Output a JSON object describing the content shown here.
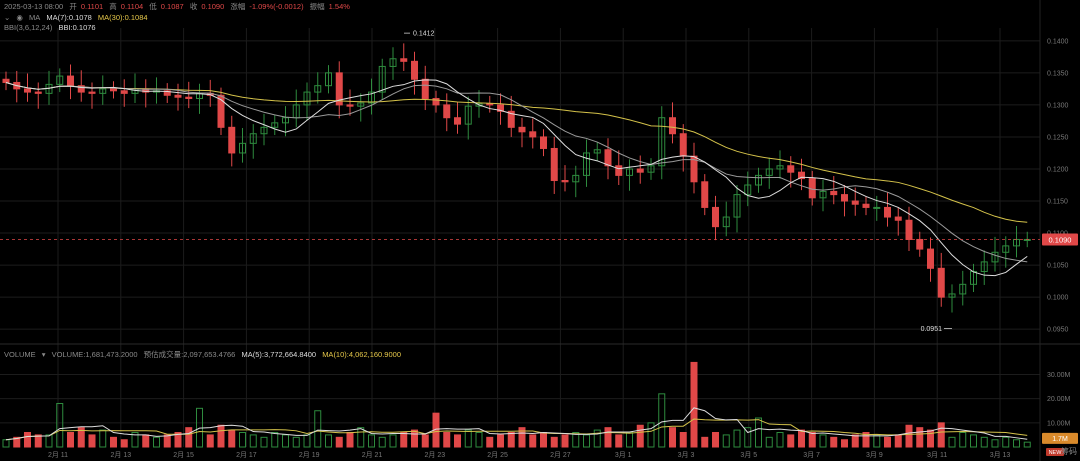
{
  "header": {
    "datetime": "2025-03-13 08:00",
    "open_label": "开",
    "open": "0.1101",
    "high_label": "高",
    "high": "0.1104",
    "low_label": "低",
    "low": "0.1087",
    "close_label": "收",
    "close": "0.1090",
    "change_label": "涨幅",
    "change": "-1.09%(-0.0012)",
    "amp_label": "振幅",
    "amp": "1.54%",
    "ma_label": "MA",
    "ma7": "MA(7):0.1078",
    "ma30": "MA(30):0.1084",
    "bbi_label": "BBI(3,6,12,24)",
    "bbi": "BBI:0.1076"
  },
  "volume_header": {
    "label": "VOLUME",
    "volume": "VOLUME:1,681,473.2000",
    "est": "预估成交量:2,097,653.4766",
    "ma5": "MA(5):3,772,664.8400",
    "ma10": "MA(10):4,062,160.9000"
  },
  "colors": {
    "up": "#2e8b3e",
    "down": "#e04848",
    "white": "#dddddd",
    "yellow": "#d4c24a",
    "grid": "#1c1c1c",
    "axis": "#777777"
  },
  "icons": [
    "eye-icon",
    "dropdown-icon",
    "settings-icon",
    "fullscreen-icon"
  ],
  "side_labels": {
    "bottom_right": "筹",
    "bottom_right2": "码",
    "new_badge": "NEW"
  },
  "chart_data": [
    {
      "type": "candlestick",
      "ylim": [
        0.093,
        0.142
      ],
      "y_ticks": [
        "0.1400",
        "0.1350",
        "0.1300",
        "0.1250",
        "0.1200",
        "0.1150",
        "0.1100",
        "0.1050",
        "0.1000",
        "0.0950"
      ],
      "x_ticks": [
        "2月 11",
        "2月 13",
        "2月 15",
        "2月 17",
        "2月 19",
        "2月 21",
        "2月 23",
        "2月 25",
        "2月 27",
        "3月 1",
        "3月 3",
        "3月 5",
        "3月 7",
        "3月 9",
        "3月 11",
        "3月 13"
      ],
      "last_price": "0.1090",
      "annotations": {
        "high": "0.1412",
        "low": "0.0951"
      },
      "series": [
        {
          "name": "MA(7)",
          "color": "#dddddd"
        },
        {
          "name": "MA(30)",
          "color": "#d4c24a"
        },
        {
          "name": "BBI",
          "color": "#bbbbbb"
        }
      ],
      "close_path": [
        0.1335,
        0.1325,
        0.132,
        0.1318,
        0.1332,
        0.1345,
        0.133,
        0.132,
        0.1318,
        0.1325,
        0.1322,
        0.1318,
        0.1325,
        0.132,
        0.1322,
        0.1315,
        0.1312,
        0.131,
        0.1318,
        0.1315,
        0.1265,
        0.1225,
        0.124,
        0.1255,
        0.1265,
        0.1272,
        0.128,
        0.13,
        0.132,
        0.133,
        0.135,
        0.13,
        0.1298,
        0.1303,
        0.132,
        0.136,
        0.1372,
        0.1368,
        0.134,
        0.131,
        0.13,
        0.128,
        0.127,
        0.1298,
        0.1302,
        0.13,
        0.129,
        0.1265,
        0.1258,
        0.125,
        0.1232,
        0.1182,
        0.118,
        0.119,
        0.1225,
        0.123,
        0.1205,
        0.119,
        0.12,
        0.1195,
        0.1205,
        0.128,
        0.1255,
        0.122,
        0.118,
        0.114,
        0.111,
        0.1125,
        0.116,
        0.1175,
        0.119,
        0.12,
        0.1205,
        0.1195,
        0.1185,
        0.1155,
        0.1165,
        0.116,
        0.115,
        0.1145,
        0.114,
        0.114,
        0.1125,
        0.112,
        0.109,
        0.1075,
        0.1045,
        0.1,
        0.1005,
        0.102,
        0.104,
        0.1055,
        0.107,
        0.108,
        0.109,
        0.109
      ],
      "volume": {
        "ylim": [
          0,
          36000000
        ],
        "y_ticks": [
          "30.00M",
          "20.00M",
          "10.00M"
        ],
        "last_volume": "1.7M",
        "bars_m": [
          3,
          4,
          6,
          5,
          5,
          4,
          6,
          8,
          5,
          7,
          4,
          3,
          6,
          5,
          4,
          5,
          6,
          8,
          6,
          5,
          9,
          7,
          6,
          5,
          4,
          6,
          5,
          4,
          5,
          6,
          5,
          4,
          6,
          8,
          5,
          4,
          5,
          6,
          7,
          5,
          4,
          6,
          5,
          7,
          6,
          4,
          5,
          6,
          8,
          5,
          6,
          4,
          5,
          6,
          5,
          7,
          8,
          5,
          6,
          9,
          10,
          7,
          8,
          6,
          5,
          4,
          6,
          5,
          7,
          8,
          5,
          4,
          6,
          5,
          7,
          6,
          5,
          4,
          3,
          5,
          6,
          5,
          4,
          5,
          6,
          8,
          7,
          5,
          4,
          6,
          5,
          4,
          3,
          4,
          3,
          2
        ],
        "spikes_m": {
          "5": 18,
          "18": 16,
          "29": 15,
          "40": 14,
          "61": 22,
          "64": 35,
          "70": 12,
          "84": 9,
          "87": 10
        }
      }
    }
  ]
}
